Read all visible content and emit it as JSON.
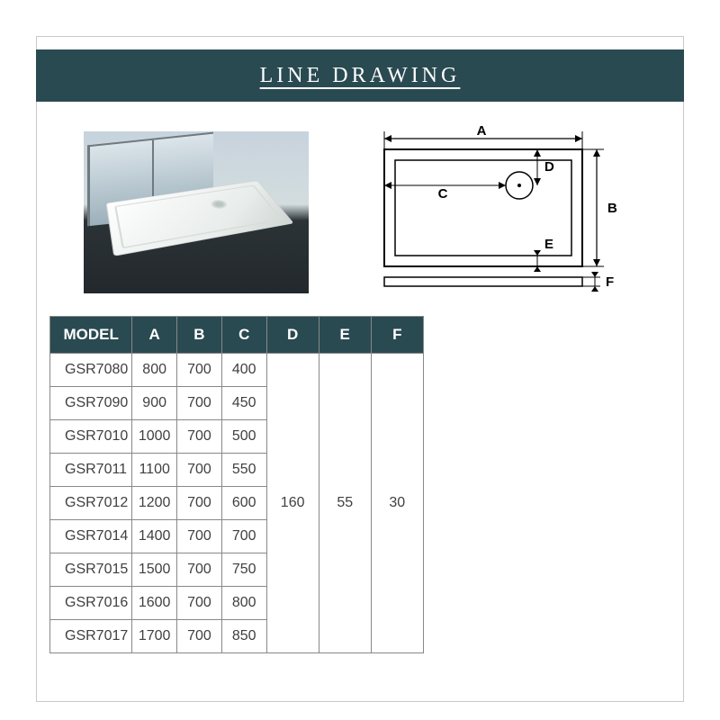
{
  "title": "LINE DRAWING",
  "colors": {
    "brand_bg": "#2a4a52",
    "brand_text": "#ffffff",
    "border": "#888888",
    "page_border": "#c8c8c8",
    "cell_text": "#404040"
  },
  "diagram": {
    "labels": {
      "A": "A",
      "B": "B",
      "C": "C",
      "D": "D",
      "E": "E",
      "F": "F"
    }
  },
  "table": {
    "columns": [
      "MODEL",
      "A",
      "B",
      "C",
      "D",
      "E",
      "F"
    ],
    "col_widths_pct": [
      22,
      12,
      12,
      12,
      14,
      14,
      14
    ],
    "merged": {
      "D": "160",
      "E": "55",
      "F": "30"
    },
    "rows": [
      {
        "model": "GSR7080",
        "A": "800",
        "B": "700",
        "C": "400"
      },
      {
        "model": "GSR7090",
        "A": "900",
        "B": "700",
        "C": "450"
      },
      {
        "model": "GSR7010",
        "A": "1000",
        "B": "700",
        "C": "500"
      },
      {
        "model": "GSR7011",
        "A": "1100",
        "B": "700",
        "C": "550"
      },
      {
        "model": "GSR7012",
        "A": "1200",
        "B": "700",
        "C": "600"
      },
      {
        "model": "GSR7014",
        "A": "1400",
        "B": "700",
        "C": "700"
      },
      {
        "model": "GSR7015",
        "A": "1500",
        "B": "700",
        "C": "750"
      },
      {
        "model": "GSR7016",
        "A": "1600",
        "B": "700",
        "C": "800"
      },
      {
        "model": "GSR7017",
        "A": "1700",
        "B": "700",
        "C": "850"
      }
    ]
  }
}
